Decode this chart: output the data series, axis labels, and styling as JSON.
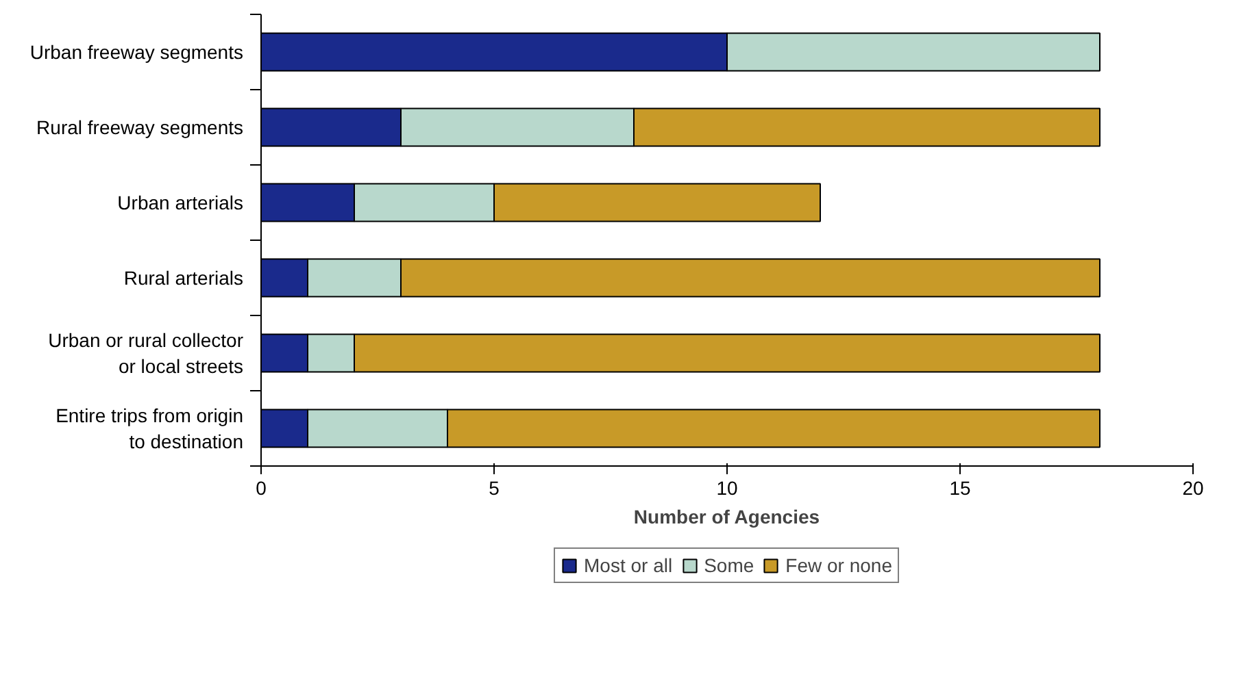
{
  "chart_data": {
    "type": "bar",
    "orientation": "horizontal",
    "stacked": true,
    "categories": [
      "Urban freeway segments",
      "Rural freeway segments",
      "Urban arterials",
      "Rural arterials",
      "Urban or rural collector or local streets",
      "Entire trips from origin to destination"
    ],
    "series": [
      {
        "name": "Most or all",
        "color": "#1a2a8c",
        "values": [
          10,
          3,
          2,
          1,
          1,
          1
        ]
      },
      {
        "name": "Some",
        "color": "#b8d8cc",
        "values": [
          8,
          5,
          3,
          2,
          1,
          3
        ]
      },
      {
        "name": "Few or none",
        "color": "#c89a28",
        "values": [
          0,
          10,
          7,
          15,
          16,
          14
        ]
      }
    ],
    "xlabel": "Number of Agencies",
    "xlim": [
      0,
      20
    ],
    "xticks": [
      0,
      5,
      10,
      15,
      20
    ],
    "grid": false,
    "legend": "bottom"
  }
}
